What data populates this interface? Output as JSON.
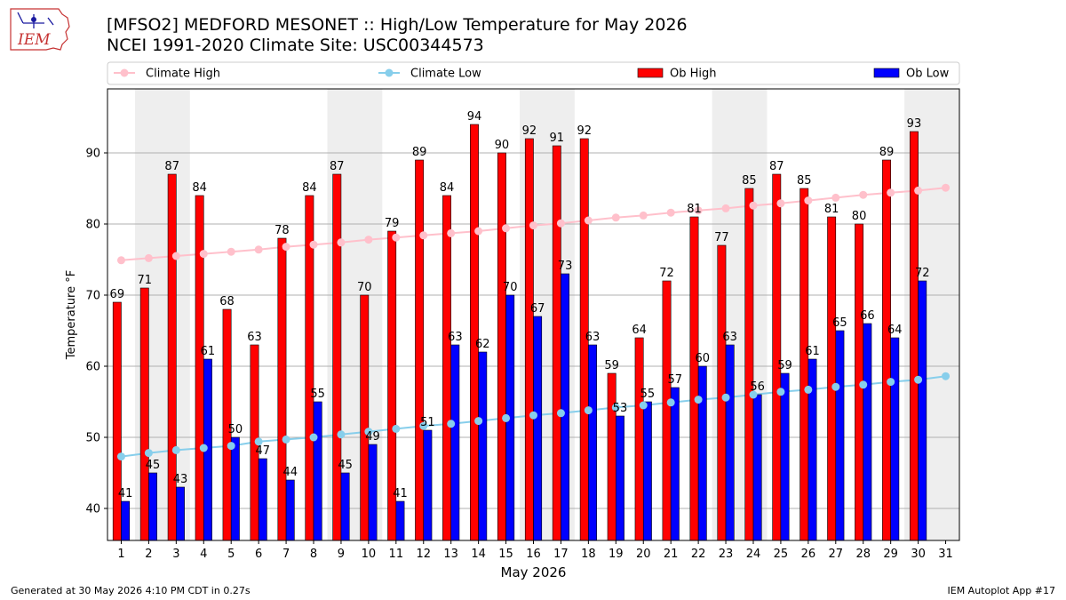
{
  "header": {
    "title_line1": "[MFSO2] MEDFORD MESONET :: High/Low Temperature for May 2026",
    "title_line2": "NCEI 1991-2020 Climate Site: USC00344573",
    "logo_text": "IEM"
  },
  "footer": {
    "generated": "Generated at 30 May 2026 4:10 PM CDT in 0.27s",
    "app": "IEM Autoplot App #17"
  },
  "chart_data": {
    "type": "bar",
    "xlabel": "May 2026",
    "ylabel": "Temperature °F",
    "ylim": [
      35.5,
      99
    ],
    "yticks": [
      40,
      50,
      60,
      70,
      80,
      90
    ],
    "grid": "horizontal",
    "weekend_shading": true,
    "shaded_days": [
      [
        2,
        3
      ],
      [
        9,
        10
      ],
      [
        16,
        17
      ],
      [
        23,
        24
      ],
      [
        30,
        31
      ]
    ],
    "categories": [
      "1",
      "2",
      "3",
      "4",
      "5",
      "6",
      "7",
      "8",
      "9",
      "10",
      "11",
      "12",
      "13",
      "14",
      "15",
      "16",
      "17",
      "18",
      "19",
      "20",
      "21",
      "22",
      "23",
      "24",
      "25",
      "26",
      "27",
      "28",
      "29",
      "30",
      "31"
    ],
    "legend": {
      "position": "top",
      "entries": [
        {
          "label": "Climate High",
          "kind": "line",
          "color": "#ffc0cb"
        },
        {
          "label": "Climate Low",
          "kind": "line",
          "color": "#87ceeb"
        },
        {
          "label": "Ob High",
          "kind": "bar",
          "color": "#ff0000"
        },
        {
          "label": "Ob Low",
          "kind": "bar",
          "color": "#0000ff"
        }
      ]
    },
    "series": [
      {
        "name": "Ob High",
        "kind": "bar",
        "color": "#ff0000",
        "values": [
          69,
          71,
          87,
          84,
          68,
          63,
          78,
          84,
          87,
          70,
          79,
          89,
          84,
          94,
          90,
          92,
          91,
          92,
          59,
          64,
          72,
          81,
          77,
          85,
          87,
          85,
          81,
          80,
          89,
          93,
          null
        ]
      },
      {
        "name": "Ob Low",
        "kind": "bar",
        "color": "#0000ff",
        "values": [
          41,
          45,
          43,
          61,
          50,
          47,
          44,
          55,
          45,
          49,
          41,
          51,
          63,
          62,
          70,
          67,
          73,
          63,
          53,
          55,
          57,
          60,
          63,
          56,
          59,
          61,
          65,
          66,
          64,
          72,
          null
        ]
      },
      {
        "name": "Climate High",
        "kind": "line",
        "color": "#ffc0cb",
        "values": [
          74.9,
          75.2,
          75.5,
          75.8,
          76.1,
          76.4,
          76.8,
          77.1,
          77.4,
          77.8,
          78.1,
          78.4,
          78.7,
          79.0,
          79.4,
          79.8,
          80.1,
          80.5,
          80.9,
          81.2,
          81.6,
          81.9,
          82.2,
          82.6,
          82.9,
          83.3,
          83.7,
          84.1,
          84.4,
          84.7,
          85.1
        ]
      },
      {
        "name": "Climate Low",
        "kind": "line",
        "color": "#87ceeb",
        "values": [
          47.3,
          47.8,
          48.2,
          48.5,
          48.8,
          49.4,
          49.7,
          50.0,
          50.4,
          50.8,
          51.2,
          51.6,
          51.9,
          52.3,
          52.7,
          53.1,
          53.4,
          53.8,
          54.2,
          54.5,
          54.9,
          55.3,
          55.6,
          56.0,
          56.4,
          56.7,
          57.1,
          57.4,
          57.8,
          58.1,
          58.6
        ]
      }
    ]
  }
}
